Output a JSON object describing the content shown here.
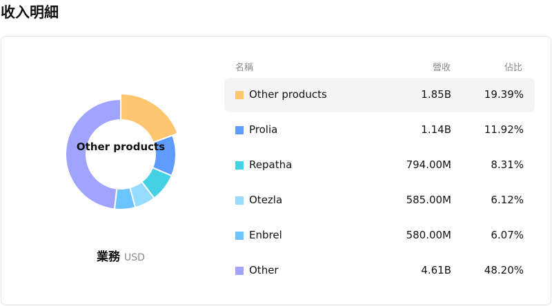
{
  "page_title": "收入明細",
  "chart_center_label": "Other products",
  "caption": {
    "segment": "業務",
    "currency": "USD"
  },
  "table": {
    "headers": {
      "name": "名稱",
      "revenue": "營收",
      "share": "佔比"
    },
    "rows": [
      {
        "name": "Other products",
        "revenue": "1.85B",
        "share": "19.39%",
        "percent": 19.39,
        "color": "#FFC670",
        "highlighted": true
      },
      {
        "name": "Prolia",
        "revenue": "1.14B",
        "share": "11.92%",
        "percent": 11.92,
        "color": "#5F9CFF"
      },
      {
        "name": "Repatha",
        "revenue": "794.00M",
        "share": "8.31%",
        "percent": 8.31,
        "color": "#45D1E5"
      },
      {
        "name": "Otezla",
        "revenue": "585.00M",
        "share": "6.12%",
        "percent": 6.12,
        "color": "#94DBFF"
      },
      {
        "name": "Enbrel",
        "revenue": "580.00M",
        "share": "6.07%",
        "percent": 6.07,
        "color": "#6CC4FF"
      },
      {
        "name": "Other",
        "revenue": "4.61B",
        "share": "48.20%",
        "percent": 48.2,
        "color": "#A0A4FF"
      }
    ]
  }
}
